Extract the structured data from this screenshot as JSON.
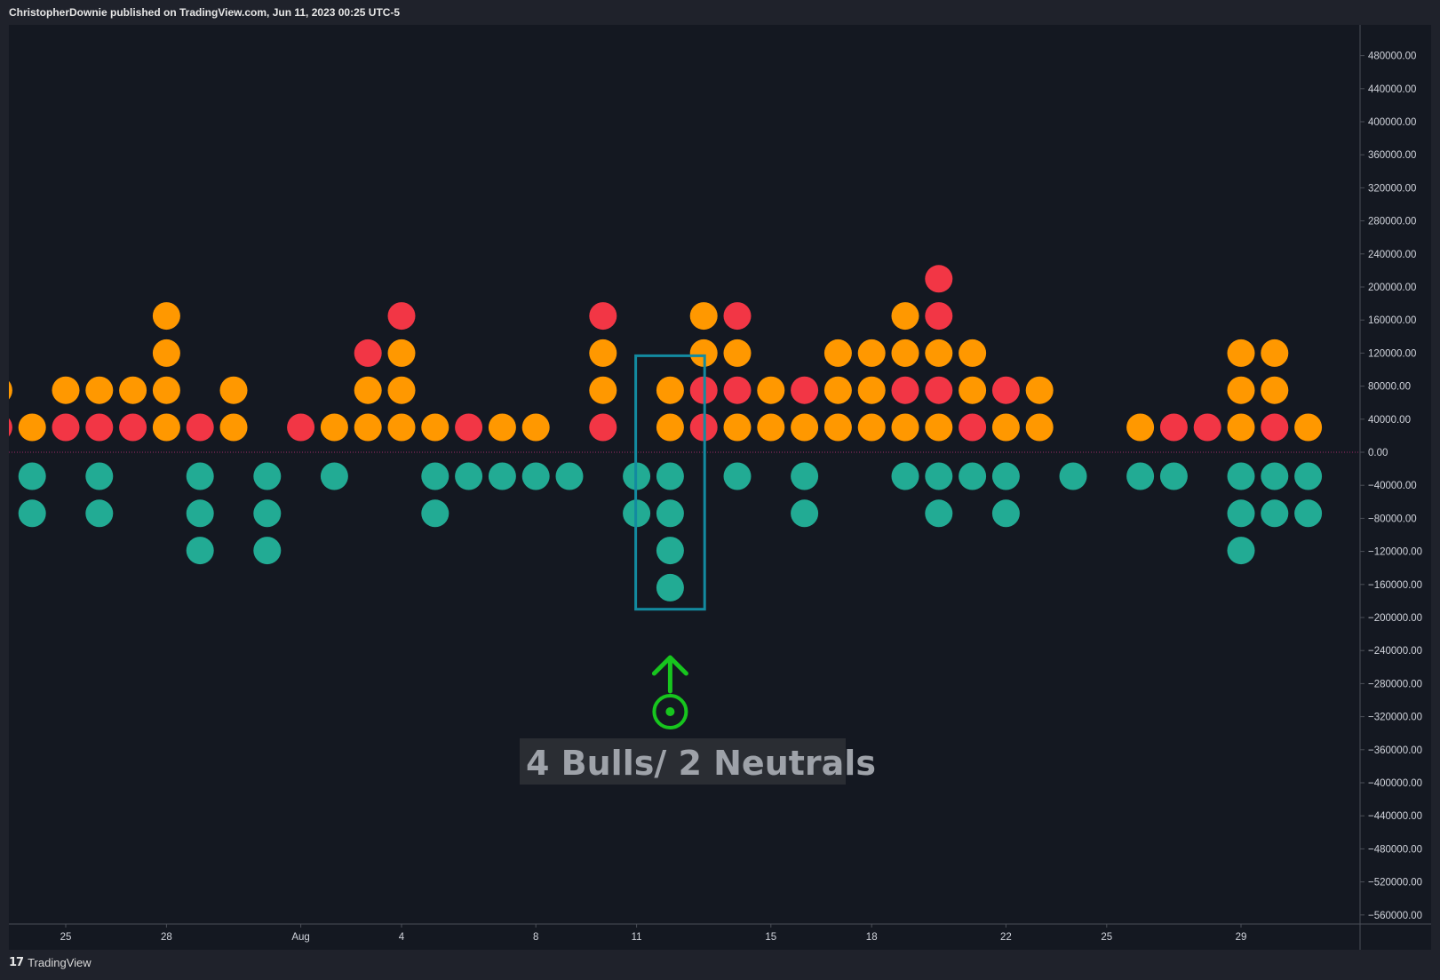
{
  "header": {
    "publisher": "ChristopherDownie published on TradingView.com, Jun 11, 2023 00:25 UTC-5"
  },
  "footer": {
    "brand": "TradingView",
    "brand_mark": "17"
  },
  "colors": {
    "background": "#141821",
    "bull": "#22ab94",
    "bear": "#f23645",
    "neutral": "#ff9800",
    "box": "#138aa0",
    "annotation_arrow": "#17c51e",
    "zero_line": "#9c2a66"
  },
  "chart_data": {
    "type": "scatter",
    "title": "",
    "xlabel": "",
    "ylabel": "",
    "ylim": [
      -580000,
      500000
    ],
    "grid": false,
    "y_ticks": [
      "480000.00",
      "440000.00",
      "400000.00",
      "360000.00",
      "320000.00",
      "280000.00",
      "240000.00",
      "200000.00",
      "160000.00",
      "120000.00",
      "80000.00",
      "40000.00",
      "0.00",
      "−40000.00",
      "−80000.00",
      "−120000.00",
      "−160000.00",
      "−200000.00",
      "−240000.00",
      "−280000.00",
      "−320000.00",
      "−360000.00",
      "−400000.00",
      "−440000.00",
      "−480000.00",
      "−520000.00",
      "−560000.00"
    ],
    "x_ticks": [
      {
        "label": "25",
        "x": 25
      },
      {
        "label": "28",
        "x": 28
      },
      {
        "label": "Aug",
        "x": 32
      },
      {
        "label": "4",
        "x": 35
      },
      {
        "label": "8",
        "x": 39
      },
      {
        "label": "11",
        "x": 42
      },
      {
        "label": "15",
        "x": 46
      },
      {
        "label": "18",
        "x": 49
      },
      {
        "label": "22",
        "x": 53
      },
      {
        "label": "25",
        "x": 56
      },
      {
        "label": "29",
        "x": 60
      }
    ],
    "x_range": [
      23.3,
      62.1
    ],
    "columns": [
      {
        "x": 23,
        "stack": [
          "bear",
          "neutral"
        ],
        "bulls": 0
      },
      {
        "x": 24,
        "stack": [
          "neutral"
        ],
        "bulls": 2
      },
      {
        "x": 25,
        "stack": [
          "bear",
          "neutral"
        ],
        "bulls": 0
      },
      {
        "x": 26,
        "stack": [
          "bear",
          "neutral"
        ],
        "bulls": 2
      },
      {
        "x": 27,
        "stack": [
          "bear",
          "neutral"
        ],
        "bulls": 0
      },
      {
        "x": 28,
        "stack": [
          "neutral",
          "neutral",
          "neutral",
          "neutral"
        ],
        "bulls": 0
      },
      {
        "x": 29,
        "stack": [
          "bear"
        ],
        "bulls": 3
      },
      {
        "x": 30,
        "stack": [
          "neutral",
          "neutral"
        ],
        "bulls": 0
      },
      {
        "x": 31,
        "stack": [],
        "bulls": 3
      },
      {
        "x": 32,
        "stack": [
          "bear"
        ],
        "bulls": 0
      },
      {
        "x": 33,
        "stack": [
          "neutral"
        ],
        "bulls": 1
      },
      {
        "x": 34,
        "stack": [
          "neutral",
          "neutral",
          "bear"
        ],
        "bulls": 0
      },
      {
        "x": 35,
        "stack": [
          "neutral",
          "neutral",
          "neutral",
          "bear"
        ],
        "bulls": 0
      },
      {
        "x": 36,
        "stack": [
          "neutral"
        ],
        "bulls": 2
      },
      {
        "x": 37,
        "stack": [
          "bear"
        ],
        "bulls": 1
      },
      {
        "x": 38,
        "stack": [
          "neutral"
        ],
        "bulls": 1
      },
      {
        "x": 39,
        "stack": [
          "neutral"
        ],
        "bulls": 1
      },
      {
        "x": 40,
        "stack": [],
        "bulls": 1
      },
      {
        "x": 41,
        "stack": [
          "bear",
          "neutral",
          "neutral",
          "bear"
        ],
        "bulls": 0
      },
      {
        "x": 42,
        "stack": [],
        "bulls": 2
      },
      {
        "x": 43,
        "stack": [
          "neutral",
          "neutral"
        ],
        "bulls": 4
      },
      {
        "x": 44,
        "stack": [
          "bear",
          "bear",
          "neutral",
          "neutral"
        ],
        "bulls": 0
      },
      {
        "x": 45,
        "stack": [
          "neutral",
          "bear",
          "neutral",
          "bear"
        ],
        "bulls": 1
      },
      {
        "x": 46,
        "stack": [
          "neutral",
          "neutral"
        ],
        "bulls": 0
      },
      {
        "x": 47,
        "stack": [
          "neutral",
          "bear"
        ],
        "bulls": 2
      },
      {
        "x": 48,
        "stack": [
          "neutral",
          "neutral",
          "neutral"
        ],
        "bulls": 0
      },
      {
        "x": 49,
        "stack": [
          "neutral",
          "neutral",
          "neutral"
        ],
        "bulls": 0
      },
      {
        "x": 50,
        "stack": [
          "neutral",
          "bear",
          "neutral",
          "neutral"
        ],
        "bulls": 1
      },
      {
        "x": 51,
        "stack": [
          "neutral",
          "bear",
          "neutral",
          "bear",
          "bear"
        ],
        "bulls": 2
      },
      {
        "x": 52,
        "stack": [
          "bear",
          "neutral",
          "neutral"
        ],
        "bulls": 1
      },
      {
        "x": 53,
        "stack": [
          "neutral",
          "bear"
        ],
        "bulls": 2
      },
      {
        "x": 54,
        "stack": [
          "neutral",
          "neutral"
        ],
        "bulls": 0
      },
      {
        "x": 55,
        "stack": [],
        "bulls": 1
      },
      {
        "x": 57,
        "stack": [
          "neutral"
        ],
        "bulls": 1
      },
      {
        "x": 58,
        "stack": [
          "bear"
        ],
        "bulls": 1
      },
      {
        "x": 59,
        "stack": [
          "bear"
        ],
        "bulls": 0
      },
      {
        "x": 60,
        "stack": [
          "neutral",
          "neutral",
          "neutral"
        ],
        "bulls": 3
      },
      {
        "x": 61,
        "stack": [
          "bear",
          "neutral",
          "neutral"
        ],
        "bulls": 2
      },
      {
        "x": 62,
        "stack": [
          "neutral"
        ],
        "bulls": 2
      }
    ],
    "highlight": {
      "x_from": 42,
      "x_to": 44,
      "y_top": 120000,
      "y_bottom": -190000
    },
    "annotation": {
      "label": "4 Bulls/ 2 Neutrals",
      "x": 43
    }
  }
}
